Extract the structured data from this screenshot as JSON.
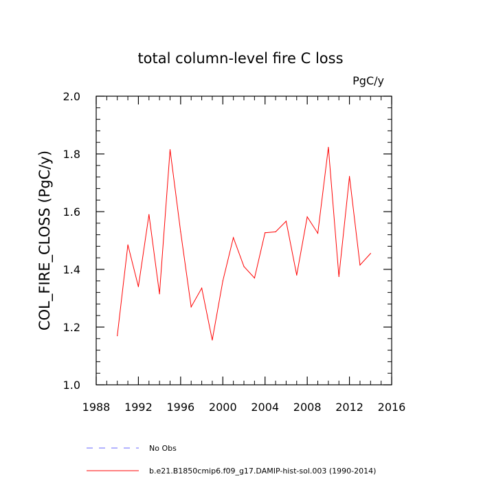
{
  "chart_data": {
    "type": "line",
    "title": "total column-level fire C loss",
    "units_label": "PgC/y",
    "xlabel": "",
    "ylabel": "COL_FIRE_CLOSS  (PgC/y)",
    "xlim": [
      1988,
      2016
    ],
    "ylim": [
      1.0,
      2.0
    ],
    "x_ticks": [
      1988,
      1992,
      1996,
      2000,
      2004,
      2008,
      2012,
      2016
    ],
    "y_ticks": [
      "1.0",
      "1.2",
      "1.4",
      "1.6",
      "1.8",
      "2.0"
    ],
    "grid": false,
    "series": [
      {
        "name": "b.e21.B1850cmip6.f09_g17.DAMIP-hist-sol.003 (1990-2014)",
        "color": "#ff0000",
        "style": "solid",
        "x": [
          1990,
          1991,
          1992,
          1993,
          1994,
          1995,
          1996,
          1997,
          1998,
          1999,
          2000,
          2001,
          2002,
          2003,
          2004,
          2005,
          2006,
          2007,
          2008,
          2009,
          2010,
          2011,
          2012,
          2013,
          2014
        ],
        "y": [
          1.17,
          1.485,
          1.34,
          1.59,
          1.315,
          1.815,
          1.53,
          1.27,
          1.335,
          1.155,
          1.36,
          1.51,
          1.41,
          1.37,
          1.527,
          1.53,
          1.567,
          1.38,
          1.582,
          1.525,
          1.823,
          1.375,
          1.722,
          1.415,
          1.455
        ]
      }
    ],
    "legend": {
      "placement": "bottom",
      "entries": [
        {
          "label": "No Obs",
          "color": "#6666ff",
          "style": "dashed"
        },
        {
          "label": "b.e21.B1850cmip6.f09_g17.DAMIP-hist-sol.003 (1990-2014)",
          "color": "#ff0000",
          "style": "solid"
        }
      ]
    }
  }
}
